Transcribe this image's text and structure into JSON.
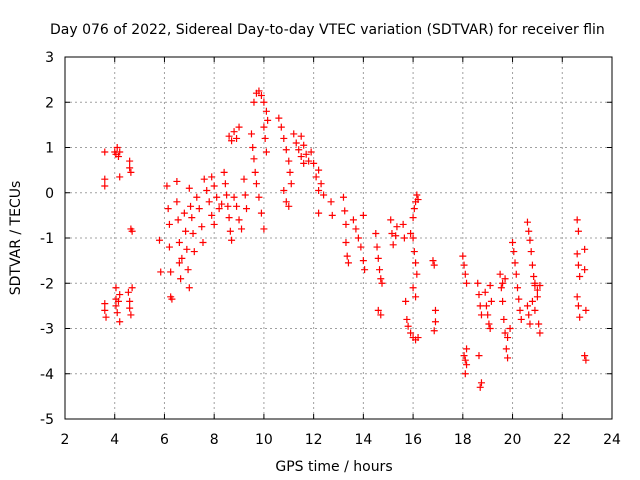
{
  "chart_data": {
    "type": "scatter",
    "title": "Day 076 of 2022, Sidereal Day-to-day VTEC variation (SDTVAR) for receiver flin",
    "xlabel": "GPS time / hours",
    "ylabel": "SDTVAR / TECUs",
    "xlim": [
      2,
      24
    ],
    "ylim": [
      -5,
      3
    ],
    "xticks": [
      "2",
      "4",
      "6",
      "8",
      "10",
      "12",
      "14",
      "16",
      "18",
      "20",
      "22",
      "24"
    ],
    "yticks": [
      "3",
      "2",
      "1",
      "0",
      "-1",
      "-2",
      "-3",
      "-4",
      "-5"
    ],
    "grid": true,
    "marker": "plus",
    "color": "#ff0000",
    "series": [
      {
        "name": "SDTVAR",
        "points": [
          [
            3.6,
            0.9
          ],
          [
            3.6,
            0.3
          ],
          [
            3.6,
            0.15
          ],
          [
            3.6,
            -2.45
          ],
          [
            3.6,
            -2.6
          ],
          [
            3.65,
            -2.75
          ],
          [
            4.0,
            0.9
          ],
          [
            4.05,
            0.85
          ],
          [
            4.1,
            1.0
          ],
          [
            4.15,
            0.8
          ],
          [
            4.2,
            0.35
          ],
          [
            4.2,
            0.9
          ],
          [
            4.05,
            -2.1
          ],
          [
            4.05,
            -2.35
          ],
          [
            4.05,
            -2.5
          ],
          [
            4.1,
            -2.65
          ],
          [
            4.15,
            -2.4
          ],
          [
            4.2,
            -2.25
          ],
          [
            4.2,
            -2.85
          ],
          [
            4.6,
            0.7
          ],
          [
            4.6,
            0.55
          ],
          [
            4.65,
            0.45
          ],
          [
            4.65,
            -0.8
          ],
          [
            4.7,
            -0.85
          ],
          [
            4.55,
            -2.2
          ],
          [
            4.6,
            -2.4
          ],
          [
            4.6,
            -2.55
          ],
          [
            4.65,
            -2.7
          ],
          [
            4.7,
            -2.1
          ],
          [
            5.8,
            -1.05
          ],
          [
            5.85,
            -1.75
          ],
          [
            6.1,
            0.15
          ],
          [
            6.15,
            -0.35
          ],
          [
            6.2,
            -0.7
          ],
          [
            6.2,
            -1.2
          ],
          [
            6.25,
            -1.75
          ],
          [
            6.25,
            -2.3
          ],
          [
            6.3,
            -2.35
          ],
          [
            6.5,
            0.25
          ],
          [
            6.5,
            -0.2
          ],
          [
            6.55,
            -0.6
          ],
          [
            6.6,
            -1.1
          ],
          [
            6.6,
            -1.55
          ],
          [
            6.65,
            -1.9
          ],
          [
            6.7,
            -1.45
          ],
          [
            6.8,
            -0.45
          ],
          [
            6.85,
            -0.85
          ],
          [
            6.9,
            -1.25
          ],
          [
            6.95,
            -1.7
          ],
          [
            7.0,
            -2.1
          ],
          [
            7.0,
            0.1
          ],
          [
            7.05,
            -0.3
          ],
          [
            7.1,
            -0.55
          ],
          [
            7.15,
            -0.9
          ],
          [
            7.2,
            -1.3
          ],
          [
            7.3,
            -0.1
          ],
          [
            7.4,
            -0.35
          ],
          [
            7.5,
            -0.75
          ],
          [
            7.55,
            -1.1
          ],
          [
            7.6,
            0.3
          ],
          [
            7.7,
            0.05
          ],
          [
            7.8,
            -0.2
          ],
          [
            7.9,
            -0.5
          ],
          [
            8.0,
            -0.7
          ],
          [
            7.9,
            0.35
          ],
          [
            8.0,
            0.15
          ],
          [
            8.1,
            -0.1
          ],
          [
            8.2,
            -0.35
          ],
          [
            8.3,
            -0.25
          ],
          [
            8.4,
            0.45
          ],
          [
            8.45,
            0.2
          ],
          [
            8.5,
            -0.05
          ],
          [
            8.55,
            -0.3
          ],
          [
            8.6,
            -0.55
          ],
          [
            8.65,
            -0.85
          ],
          [
            8.7,
            -1.05
          ],
          [
            8.6,
            1.25
          ],
          [
            8.7,
            1.15
          ],
          [
            8.8,
            1.35
          ],
          [
            8.9,
            1.2
          ],
          [
            9.0,
            1.45
          ],
          [
            8.8,
            -0.1
          ],
          [
            8.9,
            -0.3
          ],
          [
            9.0,
            -0.6
          ],
          [
            9.1,
            -0.8
          ],
          [
            9.2,
            0.3
          ],
          [
            9.25,
            -0.05
          ],
          [
            9.3,
            -0.35
          ],
          [
            9.5,
            1.3
          ],
          [
            9.55,
            1.0
          ],
          [
            9.6,
            0.75
          ],
          [
            9.65,
            0.45
          ],
          [
            9.7,
            0.2
          ],
          [
            9.8,
            -0.1
          ],
          [
            9.9,
            -0.45
          ],
          [
            10.0,
            -0.8
          ],
          [
            9.6,
            2.0
          ],
          [
            9.7,
            2.2
          ],
          [
            9.8,
            2.25
          ],
          [
            9.9,
            2.15
          ],
          [
            10.0,
            2.0
          ],
          [
            10.1,
            1.8
          ],
          [
            10.15,
            1.6
          ],
          [
            10.0,
            1.45
          ],
          [
            10.05,
            1.2
          ],
          [
            10.1,
            0.9
          ],
          [
            10.6,
            1.65
          ],
          [
            10.7,
            1.45
          ],
          [
            10.8,
            1.2
          ],
          [
            10.9,
            0.95
          ],
          [
            11.0,
            0.7
          ],
          [
            11.05,
            0.45
          ],
          [
            11.1,
            0.2
          ],
          [
            10.8,
            0.05
          ],
          [
            10.9,
            -0.2
          ],
          [
            11.0,
            -0.3
          ],
          [
            11.2,
            1.3
          ],
          [
            11.3,
            1.1
          ],
          [
            11.4,
            0.95
          ],
          [
            11.5,
            0.8
          ],
          [
            11.6,
            0.65
          ],
          [
            11.5,
            1.25
          ],
          [
            11.6,
            1.05
          ],
          [
            11.7,
            0.85
          ],
          [
            11.8,
            0.7
          ],
          [
            11.9,
            0.9
          ],
          [
            12.0,
            0.65
          ],
          [
            12.1,
            0.35
          ],
          [
            12.2,
            0.05
          ],
          [
            12.2,
            0.5
          ],
          [
            12.3,
            0.2
          ],
          [
            12.4,
            -0.05
          ],
          [
            12.2,
            -0.45
          ],
          [
            12.7,
            -0.2
          ],
          [
            12.75,
            -0.5
          ],
          [
            13.2,
            -0.1
          ],
          [
            13.25,
            -0.4
          ],
          [
            13.3,
            -0.7
          ],
          [
            13.3,
            -1.1
          ],
          [
            13.35,
            -1.4
          ],
          [
            13.4,
            -1.55
          ],
          [
            13.6,
            -0.6
          ],
          [
            13.7,
            -0.8
          ],
          [
            13.8,
            -1.0
          ],
          [
            13.9,
            -1.2
          ],
          [
            14.0,
            -0.5
          ],
          [
            14.0,
            -1.5
          ],
          [
            14.05,
            -1.7
          ],
          [
            14.5,
            -0.9
          ],
          [
            14.55,
            -1.2
          ],
          [
            14.6,
            -1.45
          ],
          [
            14.65,
            -1.7
          ],
          [
            14.7,
            -1.9
          ],
          [
            14.75,
            -2.0
          ],
          [
            14.6,
            -2.6
          ],
          [
            14.7,
            -2.7
          ],
          [
            15.1,
            -0.6
          ],
          [
            15.15,
            -0.9
          ],
          [
            15.2,
            -1.15
          ],
          [
            15.3,
            -0.95
          ],
          [
            15.35,
            -0.75
          ],
          [
            15.6,
            -0.7
          ],
          [
            15.65,
            -1.0
          ],
          [
            15.7,
            -2.4
          ],
          [
            15.75,
            -2.8
          ],
          [
            15.8,
            -2.95
          ],
          [
            15.9,
            -0.9
          ],
          [
            16.0,
            -0.55
          ],
          [
            16.05,
            -0.35
          ],
          [
            16.1,
            -0.2
          ],
          [
            16.15,
            -0.05
          ],
          [
            16.2,
            -0.15
          ],
          [
            16.0,
            -1.0
          ],
          [
            16.05,
            -1.3
          ],
          [
            16.1,
            -1.55
          ],
          [
            16.15,
            -1.8
          ],
          [
            16.0,
            -2.1
          ],
          [
            16.1,
            -2.3
          ],
          [
            15.9,
            -3.1
          ],
          [
            16.0,
            -3.2
          ],
          [
            16.1,
            -3.25
          ],
          [
            16.2,
            -3.2
          ],
          [
            16.8,
            -1.5
          ],
          [
            16.85,
            -1.6
          ],
          [
            16.9,
            -2.6
          ],
          [
            16.9,
            -2.85
          ],
          [
            16.85,
            -3.05
          ],
          [
            18.0,
            -1.4
          ],
          [
            18.05,
            -1.6
          ],
          [
            18.1,
            -1.8
          ],
          [
            18.15,
            -2.0
          ],
          [
            18.05,
            -3.6
          ],
          [
            18.1,
            -3.7
          ],
          [
            18.15,
            -3.8
          ],
          [
            18.1,
            -4.0
          ],
          [
            18.15,
            -3.45
          ],
          [
            18.6,
            -2.0
          ],
          [
            18.65,
            -2.25
          ],
          [
            18.7,
            -2.5
          ],
          [
            18.75,
            -2.7
          ],
          [
            18.65,
            -3.6
          ],
          [
            18.7,
            -4.3
          ],
          [
            18.75,
            -4.2
          ],
          [
            18.9,
            -2.2
          ],
          [
            18.95,
            -2.5
          ],
          [
            19.0,
            -2.7
          ],
          [
            19.05,
            -2.9
          ],
          [
            19.1,
            -3.0
          ],
          [
            19.15,
            -2.4
          ],
          [
            19.1,
            -2.05
          ],
          [
            19.5,
            -1.8
          ],
          [
            19.55,
            -2.1
          ],
          [
            19.6,
            -2.4
          ],
          [
            19.65,
            -2.8
          ],
          [
            19.7,
            -3.1
          ],
          [
            19.75,
            -3.45
          ],
          [
            19.8,
            -3.65
          ],
          [
            19.6,
            -2.0
          ],
          [
            19.7,
            -1.9
          ],
          [
            19.8,
            -3.2
          ],
          [
            19.9,
            -3.0
          ],
          [
            20.0,
            -1.1
          ],
          [
            20.05,
            -1.3
          ],
          [
            20.1,
            -1.55
          ],
          [
            20.15,
            -1.8
          ],
          [
            20.2,
            -2.1
          ],
          [
            20.25,
            -2.35
          ],
          [
            20.3,
            -2.6
          ],
          [
            20.35,
            -2.8
          ],
          [
            20.6,
            -0.65
          ],
          [
            20.65,
            -0.85
          ],
          [
            20.7,
            -1.05
          ],
          [
            20.75,
            -1.3
          ],
          [
            20.8,
            -1.6
          ],
          [
            20.85,
            -1.85
          ],
          [
            20.9,
            -2.0
          ],
          [
            20.6,
            -2.5
          ],
          [
            20.65,
            -2.7
          ],
          [
            20.7,
            -2.9
          ],
          [
            20.8,
            -2.4
          ],
          [
            20.9,
            -2.6
          ],
          [
            21.0,
            -2.3
          ],
          [
            20.9,
            -2.05
          ],
          [
            21.0,
            -2.15
          ],
          [
            21.05,
            -2.9
          ],
          [
            21.1,
            -3.1
          ],
          [
            21.1,
            -2.05
          ],
          [
            22.6,
            -0.6
          ],
          [
            22.65,
            -0.85
          ],
          [
            22.6,
            -1.35
          ],
          [
            22.65,
            -1.6
          ],
          [
            22.7,
            -1.85
          ],
          [
            22.6,
            -2.3
          ],
          [
            22.65,
            -2.5
          ],
          [
            22.7,
            -2.75
          ],
          [
            22.9,
            -1.25
          ],
          [
            22.9,
            -1.7
          ],
          [
            22.95,
            -2.6
          ],
          [
            22.9,
            -3.6
          ],
          [
            22.95,
            -3.7
          ]
        ]
      }
    ]
  }
}
